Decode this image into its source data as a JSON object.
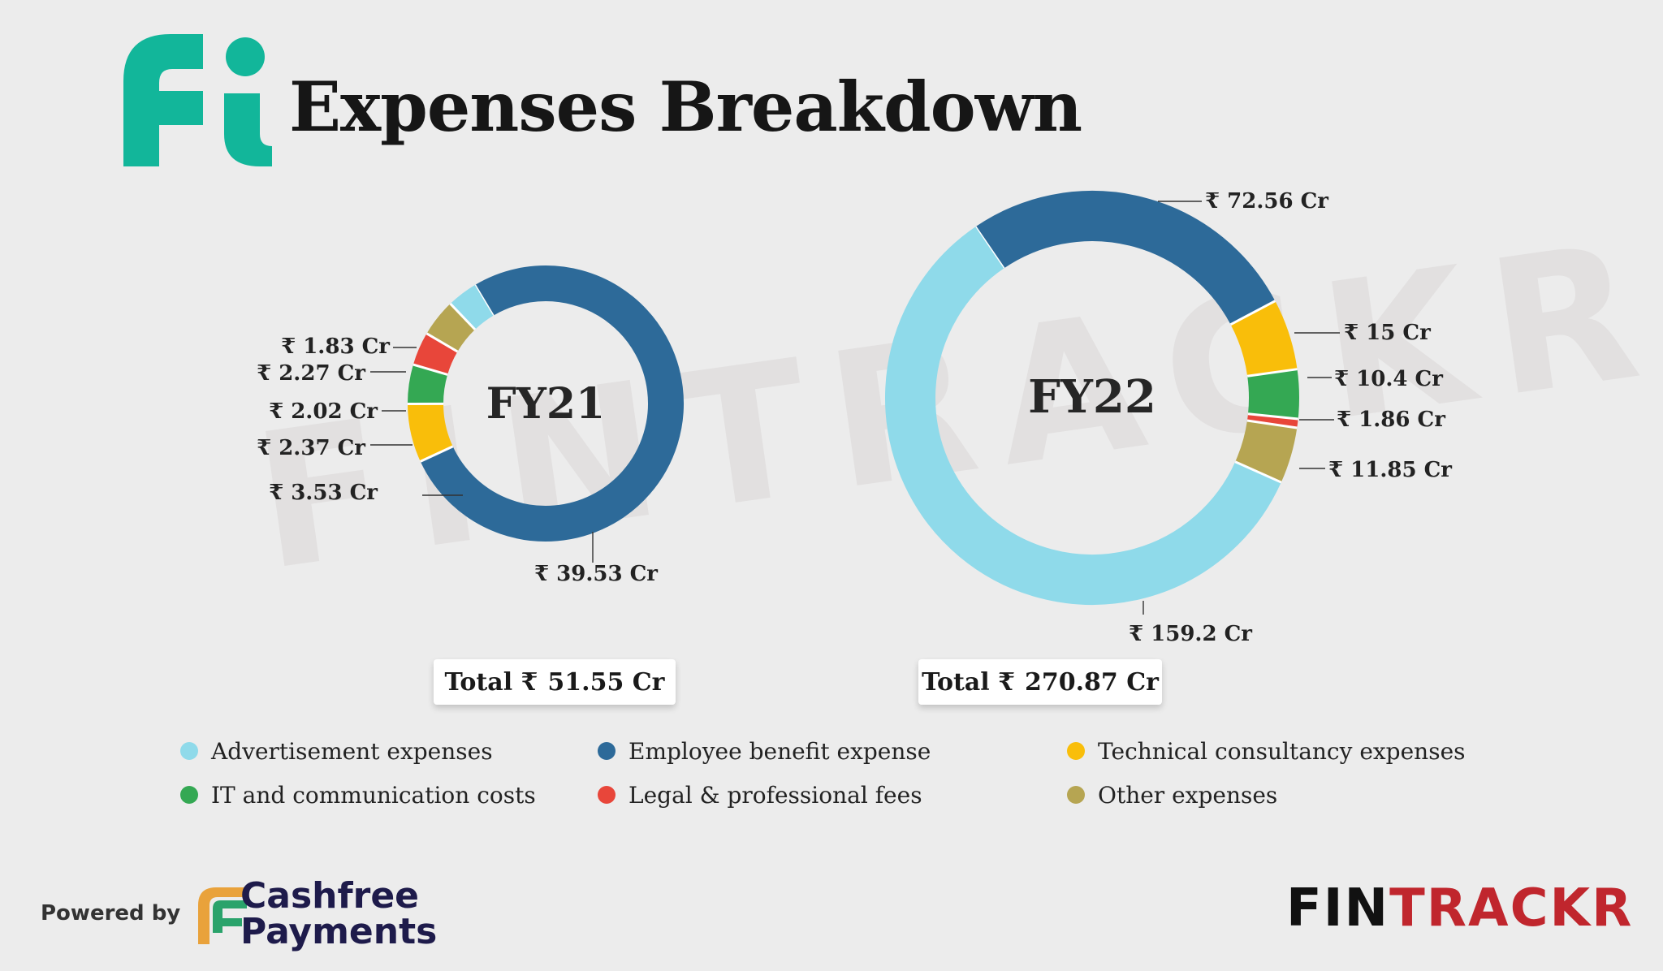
{
  "header": {
    "title": "Expenses Breakdown",
    "logo_color": "#12b69a"
  },
  "watermark": "FINTRACKR",
  "colors": {
    "Advertisement expenses": "#8fdaea",
    "Employee benefit expense": "#2d6a99",
    "Technical consultancy expenses": "#f9be0a",
    "IT and communication costs": "#34a853",
    "Legal & professional fees": "#e8463a",
    "Other expenses": "#b6a552"
  },
  "chart_data": [
    {
      "type": "pie",
      "title": "FY21",
      "unit": "₹ Cr",
      "total_label": "Total ₹",
      "total_value": "51.55 Cr",
      "slices": [
        {
          "category": "Employee benefit expense",
          "value": 39.53,
          "label": "₹ 39.53 Cr"
        },
        {
          "category": "Technical consultancy expenses",
          "value": 3.53,
          "label": "₹ 3.53 Cr"
        },
        {
          "category": "IT and communication costs",
          "value": 2.37,
          "label": "₹ 2.37 Cr"
        },
        {
          "category": "Legal & professional fees",
          "value": 2.02,
          "label": "₹ 2.02 Cr"
        },
        {
          "category": "Other expenses",
          "value": 2.27,
          "label": "₹ 2.27 Cr"
        },
        {
          "category": "Advertisement expenses",
          "value": 1.83,
          "label": "₹ 1.83 Cr"
        }
      ]
    },
    {
      "type": "pie",
      "title": "FY22",
      "unit": "₹ Cr",
      "total_label": "Total ₹",
      "total_value": "270.87 Cr",
      "slices": [
        {
          "category": "Employee benefit expense",
          "value": 72.56,
          "label": "₹ 72.56 Cr"
        },
        {
          "category": "Technical consultancy expenses",
          "value": 15,
          "label": "₹ 15 Cr"
        },
        {
          "category": "IT and communication costs",
          "value": 10.4,
          "label": "₹ 10.4 Cr"
        },
        {
          "category": "Legal & professional fees",
          "value": 1.86,
          "label": "₹ 1.86 Cr"
        },
        {
          "category": "Other expenses",
          "value": 11.85,
          "label": "₹ 11.85 Cr"
        },
        {
          "category": "Advertisement expenses",
          "value": 159.2,
          "label": "₹ 159.2 Cr"
        }
      ]
    }
  ],
  "legend": [
    "Advertisement expenses",
    "Employee benefit expense",
    "Technical consultancy expenses",
    "IT and communication costs",
    "Legal & professional fees",
    "Other expenses"
  ],
  "footer": {
    "powered_by": "Powered by",
    "brand_line1": "Cashfree",
    "brand_line2": "Payments",
    "fintrackr_a": "FIN",
    "fintrackr_b": "TRACKR"
  }
}
